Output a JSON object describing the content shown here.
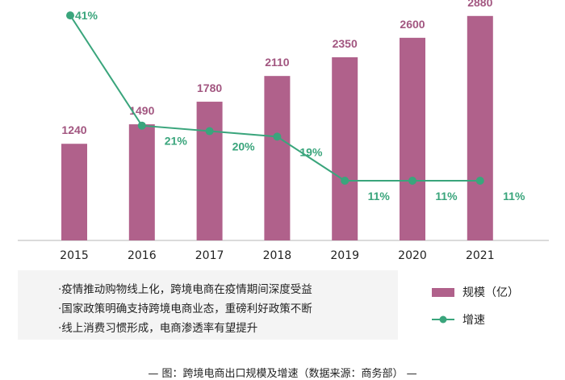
{
  "chart_data": {
    "type": "bar+line",
    "categories": [
      "2015",
      "2016",
      "2017",
      "2018",
      "2019",
      "2020",
      "2021"
    ],
    "series": [
      {
        "name": "规模（亿）",
        "type": "bar",
        "values": [
          1240,
          1490,
          1780,
          2110,
          2350,
          2600,
          2880
        ],
        "labels": [
          "1240",
          "1490",
          "1780",
          "2110",
          "2350",
          "2600",
          "2880"
        ]
      },
      {
        "name": "增速",
        "type": "line",
        "values": [
          41,
          21,
          20,
          19,
          11,
          11,
          11
        ],
        "labels": [
          "41%",
          "21%",
          "20%",
          "19%",
          "11%",
          "11%",
          "11%"
        ]
      }
    ],
    "colors": {
      "bar": "#b0618b",
      "line": "#3aa57c"
    },
    "grid": false
  },
  "notes": [
    "·疫情推动购物线上化，跨境电商在疫情期间深度受益",
    "·国家政策明确支持跨境电商业态，重磅利好政策不断",
    "·线上消费习惯形成，电商渗透率有望提升"
  ],
  "legend": {
    "bar": "规模（亿）",
    "line": "增速"
  },
  "caption": "— 图：跨境电商出口规模及增速（数据来源：商务部） —"
}
